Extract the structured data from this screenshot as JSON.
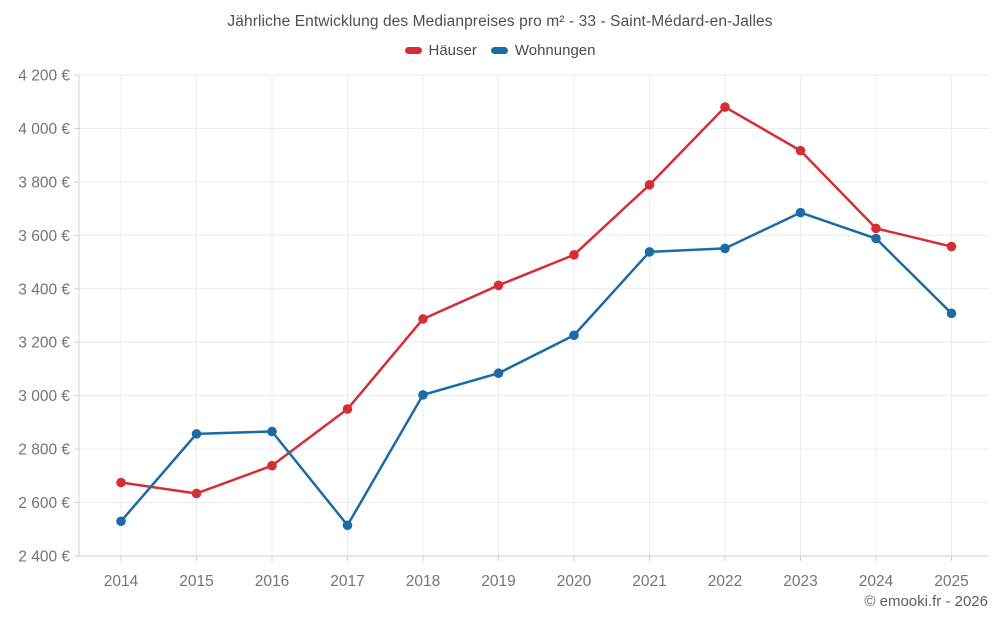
{
  "footer": {
    "credit": "© emooki.fr - 2026"
  },
  "chart_data": {
    "type": "line",
    "title": "Jährliche Entwicklung des Medianpreises pro m² - 33 - Saint-Médard-en-Jalles",
    "categories": [
      "2014",
      "2015",
      "2016",
      "2017",
      "2018",
      "2019",
      "2020",
      "2021",
      "2022",
      "2023",
      "2024",
      "2025"
    ],
    "series": [
      {
        "name": "Häuser",
        "color": "#d62e35",
        "values": [
          2675,
          2634,
          2738,
          2950,
          3287,
          3413,
          3527,
          3789,
          4080,
          3917,
          3626,
          3558
        ]
      },
      {
        "name": "Wohnungen",
        "color": "#1b6ba6",
        "values": [
          2530,
          2857,
          2866,
          2515,
          3003,
          3084,
          3226,
          3538,
          3551,
          3685,
          3588,
          3308
        ]
      }
    ],
    "ylabel_format": "{value} €",
    "ylim": [
      2400,
      4200
    ],
    "ytick_step": 200,
    "grid": true,
    "legend_position": "top",
    "colors": {
      "gridline": "#ececec",
      "axis": "#d0d0d0",
      "tick_label": "#757575",
      "title": "#4f4f4f"
    }
  }
}
